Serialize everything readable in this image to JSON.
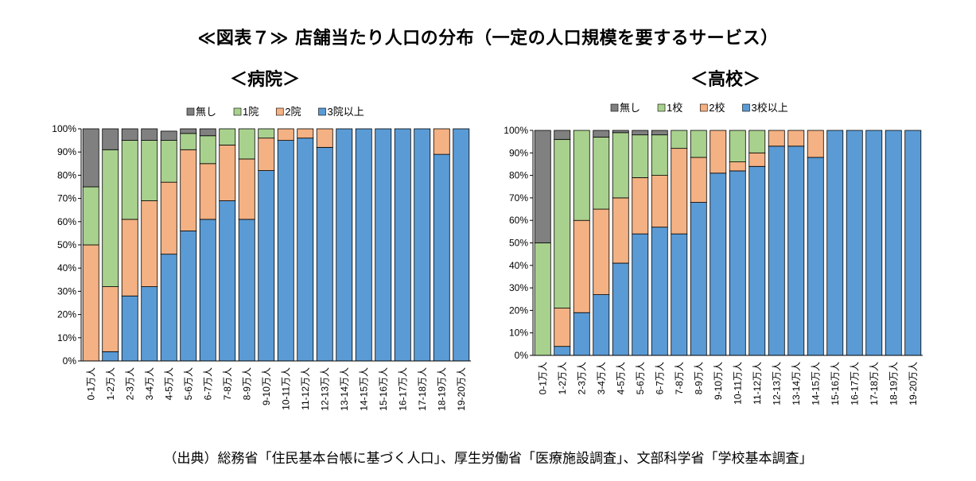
{
  "title": "≪図表７≫ 店舗当たり人口の分布（一定の人口規模を要するサービス）",
  "source": "（出典）総務省「住民基本台帳に基づく人口」、厚生労働省「医療施設調査」、文部科学省「学校基本調査」",
  "colors": {
    "none": "#808080",
    "one": "#a9d18e",
    "two": "#f4b183",
    "three": "#5b9bd5"
  },
  "chart_data": [
    {
      "type": "bar",
      "stacked": true,
      "title": "＜病院＞",
      "categories": [
        "0-1万人",
        "1-2万人",
        "2-3万人",
        "3-4万人",
        "4-5万人",
        "5-6万人",
        "6-7万人",
        "7-8万人",
        "8-9万人",
        "9-10万人",
        "10-11万人",
        "11-12万人",
        "12-13万人",
        "13-14万人",
        "14-15万人",
        "15-16万人",
        "16-17万人",
        "17-18万人",
        "18-19万人",
        "19-20万人"
      ],
      "yticks": [
        "0%",
        "10%",
        "20%",
        "30%",
        "40%",
        "50%",
        "60%",
        "70%",
        "80%",
        "90%",
        "100%"
      ],
      "ylim": [
        0,
        100
      ],
      "legend_position": "top",
      "series": [
        {
          "name": "3院以上",
          "values": [
            0,
            4,
            28,
            32,
            46,
            56,
            61,
            69,
            61,
            82,
            95,
            96,
            92,
            100,
            100,
            100,
            100,
            100,
            89,
            100
          ]
        },
        {
          "name": "2院",
          "values": [
            50,
            28,
            33,
            37,
            31,
            35,
            24,
            24,
            26,
            14,
            5,
            4,
            8,
            0,
            0,
            0,
            0,
            0,
            11,
            0
          ]
        },
        {
          "name": "1院",
          "values": [
            25,
            59,
            34,
            26,
            18,
            7,
            12,
            7,
            13,
            4,
            0,
            0,
            0,
            0,
            0,
            0,
            0,
            0,
            0,
            0
          ]
        },
        {
          "name": "無し",
          "values": [
            25,
            9,
            5,
            5,
            4,
            2,
            3,
            0,
            0,
            0,
            0,
            0,
            0,
            0,
            0,
            0,
            0,
            0,
            0,
            0
          ]
        }
      ]
    },
    {
      "type": "bar",
      "stacked": true,
      "title": "＜高校＞",
      "categories": [
        "0-1万人",
        "1-2万人",
        "2-3万人",
        "3-4万人",
        "4-5万人",
        "5-6万人",
        "6-7万人",
        "7-8万人",
        "8-9万人",
        "9-10万人",
        "10-11万人",
        "11-12万人",
        "12-13万人",
        "13-14万人",
        "14-15万人",
        "15-16万人",
        "16-17万人",
        "17-18万人",
        "18-19万人",
        "19-20万人"
      ],
      "yticks": [
        "0%",
        "10%",
        "20%",
        "30%",
        "40%",
        "50%",
        "60%",
        "70%",
        "80%",
        "90%",
        "100%"
      ],
      "ylim": [
        0,
        100
      ],
      "legend_position": "top",
      "series": [
        {
          "name": "3校以上",
          "values": [
            0,
            4,
            19,
            27,
            41,
            54,
            57,
            54,
            68,
            81,
            82,
            84,
            93,
            93,
            88,
            100,
            100,
            100,
            100,
            100
          ]
        },
        {
          "name": "2校",
          "values": [
            0,
            17,
            41,
            38,
            29,
            25,
            23,
            38,
            20,
            19,
            4,
            6,
            7,
            7,
            12,
            0,
            0,
            0,
            0,
            0
          ]
        },
        {
          "name": "1校",
          "values": [
            50,
            75,
            40,
            32,
            29,
            19,
            18,
            8,
            12,
            0,
            14,
            10,
            0,
            0,
            0,
            0,
            0,
            0,
            0,
            0
          ]
        },
        {
          "name": "無し",
          "values": [
            50,
            4,
            0,
            3,
            1,
            2,
            2,
            0,
            0,
            0,
            0,
            0,
            0,
            0,
            0,
            0,
            0,
            0,
            0,
            0
          ]
        }
      ]
    }
  ]
}
